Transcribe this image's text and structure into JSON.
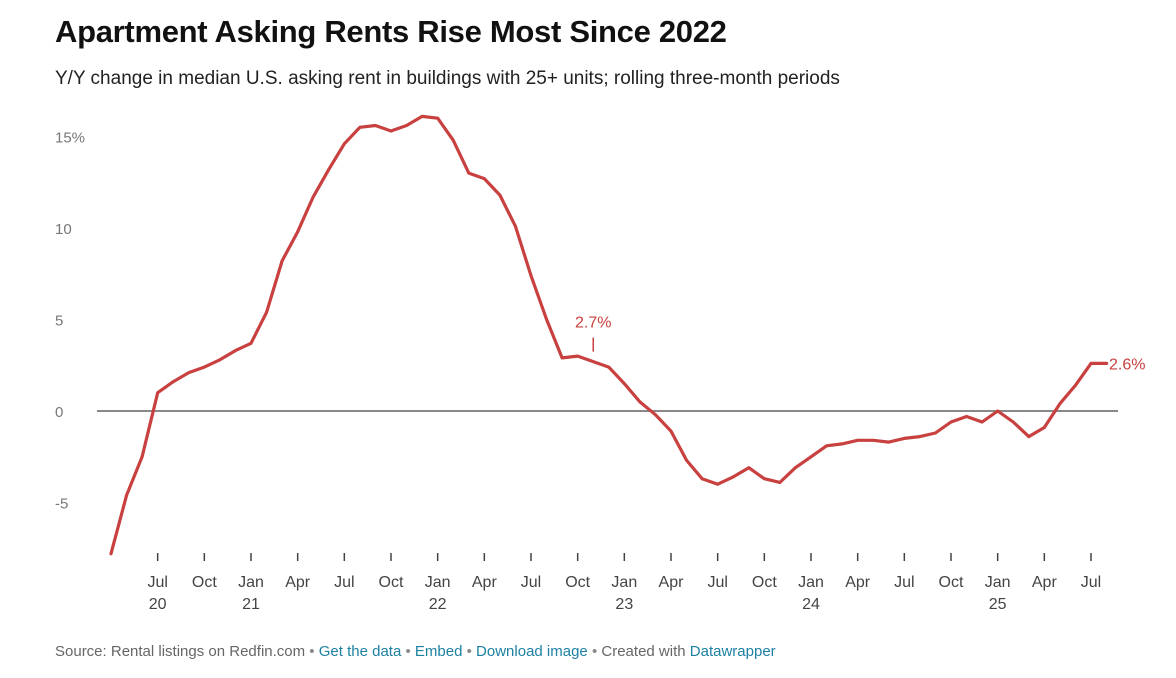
{
  "header": {
    "title": "Apartment Asking Rents Rise Most Since 2022",
    "subtitle": "Y/Y change in median U.S. asking rent in buildings with 25+ units; rolling three-month periods"
  },
  "footer": {
    "source": "Source: Rental listings on Redfin.com",
    "get_data": "Get the data",
    "embed": "Embed",
    "download": "Download image",
    "created_with": "Created with",
    "datawrapper": "Datawrapper",
    "separator": "•"
  },
  "colors": {
    "line": "#c8403f",
    "zero_line": "#888888",
    "tick_label": "#777777",
    "axis_label": "#444444",
    "link": "#1d81a2"
  },
  "chart_data": {
    "type": "line",
    "title": "Apartment Asking Rents Rise Most Since 2022",
    "xlabel": "",
    "ylabel": "",
    "ylim": [
      -8,
      16.5
    ],
    "xlim": [
      0,
      63
    ],
    "x_unit": "months since 2020-04 (2020-04 = 0)",
    "yticks": [
      {
        "value": 15,
        "label": "15%"
      },
      {
        "value": 10,
        "label": "10"
      },
      {
        "value": 5,
        "label": "5"
      },
      {
        "value": 0,
        "label": "0"
      },
      {
        "value": -5,
        "label": "-5"
      }
    ],
    "xticks": [
      {
        "x": 3,
        "month": "Jul",
        "year": "20"
      },
      {
        "x": 6,
        "month": "Oct",
        "year": ""
      },
      {
        "x": 9,
        "month": "Jan",
        "year": "21"
      },
      {
        "x": 12,
        "month": "Apr",
        "year": ""
      },
      {
        "x": 15,
        "month": "Jul",
        "year": ""
      },
      {
        "x": 18,
        "month": "Oct",
        "year": ""
      },
      {
        "x": 21,
        "month": "Jan",
        "year": "22"
      },
      {
        "x": 24,
        "month": "Apr",
        "year": ""
      },
      {
        "x": 27,
        "month": "Jul",
        "year": ""
      },
      {
        "x": 30,
        "month": "Oct",
        "year": ""
      },
      {
        "x": 33,
        "month": "Jan",
        "year": "23"
      },
      {
        "x": 36,
        "month": "Apr",
        "year": ""
      },
      {
        "x": 39,
        "month": "Jul",
        "year": ""
      },
      {
        "x": 42,
        "month": "Oct",
        "year": ""
      },
      {
        "x": 45,
        "month": "Jan",
        "year": "24"
      },
      {
        "x": 48,
        "month": "Apr",
        "year": ""
      },
      {
        "x": 51,
        "month": "Jul",
        "year": ""
      },
      {
        "x": 54,
        "month": "Oct",
        "year": ""
      },
      {
        "x": 57,
        "month": "Jan",
        "year": "25"
      },
      {
        "x": 60,
        "month": "Apr",
        "year": ""
      },
      {
        "x": 63,
        "month": "Jul",
        "year": ""
      }
    ],
    "series": [
      {
        "name": "Y/Y change in median asking rent",
        "x": [
          0,
          1,
          2,
          3,
          4,
          5,
          6,
          7,
          8,
          9,
          10,
          11,
          12,
          13,
          14,
          15,
          16,
          17,
          18,
          19,
          20,
          21,
          22,
          23,
          24,
          25,
          26,
          27,
          28,
          29,
          30,
          31,
          32,
          33,
          34,
          35,
          36,
          37,
          38,
          39,
          40,
          41,
          42,
          43,
          44,
          45,
          46,
          47,
          48,
          49,
          50,
          51,
          52,
          53,
          54,
          55,
          56,
          57,
          58,
          59,
          60,
          61,
          62,
          63,
          64
        ],
        "values": [
          -7.8,
          -4.6,
          -2.5,
          1.0,
          1.6,
          2.1,
          2.4,
          2.8,
          3.3,
          3.7,
          5.4,
          8.2,
          9.8,
          11.7,
          13.2,
          14.6,
          15.5,
          15.6,
          15.3,
          15.6,
          16.1,
          16.0,
          14.8,
          13.0,
          12.7,
          11.8,
          10.1,
          7.4,
          5.0,
          2.9,
          3.0,
          2.7,
          2.4,
          1.5,
          0.5,
          -0.2,
          -1.1,
          -2.7,
          -3.7,
          -4.0,
          -3.6,
          -3.1,
          -3.7,
          -3.9,
          -3.1,
          -2.5,
          -1.9,
          -1.8,
          -1.6,
          -1.6,
          -1.7,
          -1.5,
          -1.4,
          -1.2,
          -0.6,
          -0.3,
          -0.6,
          0.0,
          -0.6,
          -1.4,
          -0.9,
          0.4,
          1.4,
          2.6,
          2.6
        ]
      }
    ],
    "annotations": [
      {
        "x": 31,
        "y": 2.7,
        "text": "2.7%"
      },
      {
        "x": 63,
        "y": 2.6,
        "text": "2.6%"
      }
    ]
  }
}
